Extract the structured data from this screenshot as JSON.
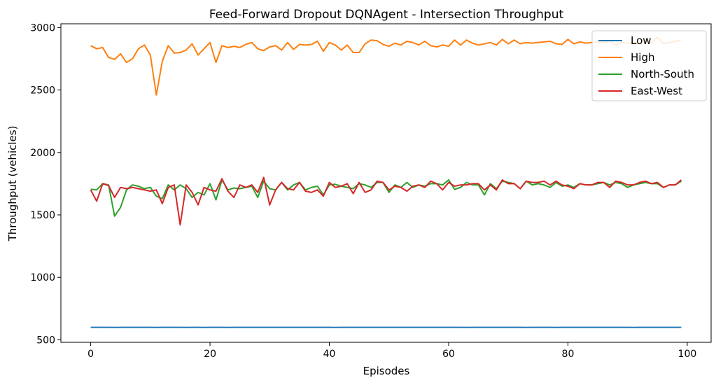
{
  "chart_data": {
    "type": "line",
    "title": "Feed-Forward Dropout DQNAgent - Intersection Throughput",
    "xlabel": "Episodes",
    "ylabel": "Throughput (vehicles)",
    "xlim": [
      -5,
      104
    ],
    "ylim": [
      480,
      3030
    ],
    "xticks": [
      0,
      20,
      40,
      60,
      80,
      100
    ],
    "yticks": [
      500,
      1000,
      1500,
      2000,
      2500,
      3000
    ],
    "grid": false,
    "legend_position": "top-right",
    "x": [
      0,
      1,
      2,
      3,
      4,
      5,
      6,
      7,
      8,
      9,
      10,
      11,
      12,
      13,
      14,
      15,
      16,
      17,
      18,
      19,
      20,
      21,
      22,
      23,
      24,
      25,
      26,
      27,
      28,
      29,
      30,
      31,
      32,
      33,
      34,
      35,
      36,
      37,
      38,
      39,
      40,
      41,
      42,
      43,
      44,
      45,
      46,
      47,
      48,
      49,
      50,
      51,
      52,
      53,
      54,
      55,
      56,
      57,
      58,
      59,
      60,
      61,
      62,
      63,
      64,
      65,
      66,
      67,
      68,
      69,
      70,
      71,
      72,
      73,
      74,
      75,
      76,
      77,
      78,
      79,
      80,
      81,
      82,
      83,
      84,
      85,
      86,
      87,
      88,
      89,
      90,
      91,
      92,
      93,
      94,
      95,
      96,
      97,
      98,
      99
    ],
    "series": [
      {
        "name": "Low",
        "color": "#1f77b4",
        "values": [
          600,
          600,
          600,
          600,
          599,
          600,
          600,
          600,
          600,
          600,
          600,
          599,
          600,
          600,
          600,
          600,
          599,
          600,
          600,
          599,
          600,
          600,
          600,
          599,
          600,
          600,
          600,
          600,
          600,
          600,
          600,
          600,
          600,
          600,
          600,
          600,
          600,
          600,
          600,
          600,
          600,
          599,
          600,
          600,
          600,
          600,
          600,
          600,
          600,
          600,
          600,
          600,
          600,
          600,
          600,
          600,
          600,
          600,
          600,
          600,
          600,
          600,
          600,
          599,
          600,
          600,
          600,
          600,
          600,
          600,
          600,
          600,
          600,
          599,
          600,
          600,
          600,
          600,
          599,
          600,
          600,
          600,
          600,
          600,
          600,
          600,
          600,
          600,
          600,
          600,
          600,
          599,
          600,
          600,
          600,
          600,
          600,
          600,
          600,
          600
        ]
      },
      {
        "name": "High",
        "color": "#ff7f0e",
        "values": [
          2855,
          2830,
          2840,
          2760,
          2745,
          2790,
          2720,
          2750,
          2830,
          2860,
          2780,
          2460,
          2730,
          2855,
          2795,
          2800,
          2820,
          2870,
          2780,
          2830,
          2880,
          2720,
          2855,
          2840,
          2850,
          2840,
          2865,
          2880,
          2830,
          2815,
          2845,
          2855,
          2820,
          2880,
          2825,
          2865,
          2860,
          2865,
          2890,
          2810,
          2880,
          2860,
          2820,
          2860,
          2800,
          2800,
          2870,
          2900,
          2895,
          2865,
          2850,
          2875,
          2860,
          2890,
          2880,
          2860,
          2890,
          2855,
          2845,
          2860,
          2850,
          2900,
          2860,
          2900,
          2875,
          2860,
          2870,
          2880,
          2860,
          2905,
          2870,
          2900,
          2870,
          2880,
          2875,
          2880,
          2885,
          2890,
          2870,
          2865,
          2905,
          2870,
          2885,
          2875,
          2880,
          2885,
          2880,
          2895,
          2860,
          2880,
          2875,
          2880,
          2870,
          2910,
          2880,
          2920,
          2870,
          2880,
          2890,
          2900
        ]
      },
      {
        "name": "North-South",
        "color": "#2ca02c",
        "values": [
          1705,
          1700,
          1750,
          1740,
          1490,
          1560,
          1700,
          1740,
          1730,
          1710,
          1720,
          1650,
          1630,
          1740,
          1700,
          1740,
          1710,
          1640,
          1680,
          1660,
          1750,
          1620,
          1780,
          1700,
          1715,
          1710,
          1720,
          1730,
          1640,
          1770,
          1710,
          1700,
          1760,
          1700,
          1740,
          1760,
          1700,
          1720,
          1730,
          1660,
          1740,
          1745,
          1730,
          1720,
          1710,
          1750,
          1740,
          1720,
          1760,
          1760,
          1680,
          1740,
          1720,
          1760,
          1720,
          1740,
          1730,
          1750,
          1750,
          1740,
          1780,
          1705,
          1720,
          1760,
          1740,
          1740,
          1660,
          1750,
          1710,
          1770,
          1760,
          1750,
          1710,
          1770,
          1740,
          1750,
          1740,
          1720,
          1760,
          1730,
          1740,
          1720,
          1750,
          1740,
          1740,
          1750,
          1760,
          1740,
          1760,
          1750,
          1720,
          1740,
          1750,
          1760,
          1750,
          1750,
          1720,
          1740,
          1740,
          1770
        ]
      },
      {
        "name": "East-West",
        "color": "#d62728",
        "values": [
          1700,
          1610,
          1750,
          1735,
          1640,
          1720,
          1710,
          1720,
          1710,
          1700,
          1690,
          1700,
          1590,
          1720,
          1740,
          1420,
          1740,
          1680,
          1580,
          1720,
          1700,
          1690,
          1790,
          1690,
          1640,
          1740,
          1720,
          1740,
          1680,
          1800,
          1580,
          1700,
          1760,
          1710,
          1700,
          1760,
          1690,
          1680,
          1700,
          1650,
          1760,
          1720,
          1730,
          1750,
          1670,
          1760,
          1680,
          1700,
          1770,
          1760,
          1700,
          1730,
          1720,
          1690,
          1730,
          1740,
          1720,
          1770,
          1750,
          1700,
          1760,
          1730,
          1740,
          1740,
          1750,
          1750,
          1700,
          1740,
          1700,
          1780,
          1750,
          1750,
          1710,
          1770,
          1760,
          1760,
          1770,
          1740,
          1770,
          1740,
          1730,
          1710,
          1750,
          1740,
          1740,
          1760,
          1760,
          1720,
          1770,
          1760,
          1740,
          1740,
          1760,
          1770,
          1750,
          1760,
          1720,
          1740,
          1740,
          1780
        ]
      }
    ]
  }
}
